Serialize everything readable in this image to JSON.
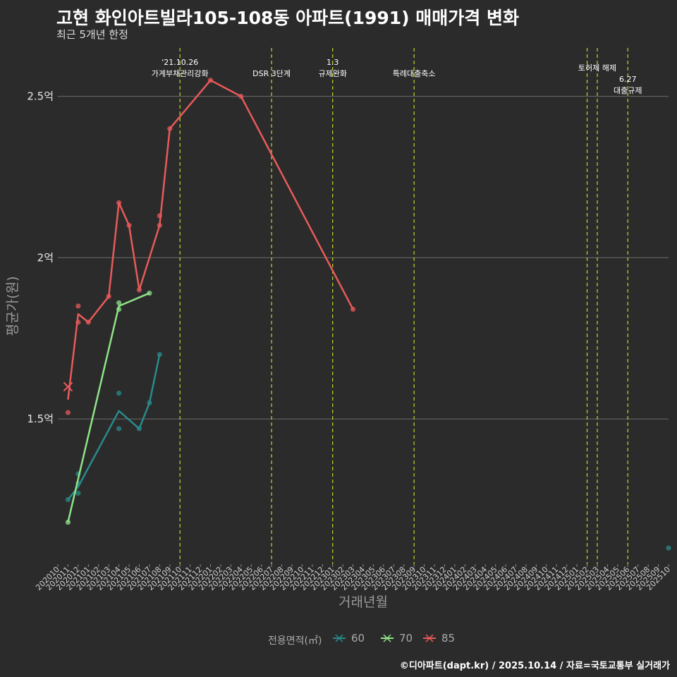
{
  "header": {
    "title": "고현 화인아트빌라105-108동 아파트(1991) 매매가격 변화",
    "subtitle": "최근 5개년 한정"
  },
  "caption": "©디아파트(dapt.kr) / 2025.10.14 / 자료=국토교통부 실거래가",
  "legend": {
    "title": "전용면적(㎡)",
    "items": [
      {
        "label": "60",
        "color": "#2a8a8a"
      },
      {
        "label": "70",
        "color": "#8fe388"
      },
      {
        "label": "85",
        "color": "#e85a5a"
      }
    ]
  },
  "chart_data": {
    "type": "line",
    "title": "고현 화인아트빌라105-108동 아파트(1991) 매매가격 변화",
    "xlabel": "거래년월",
    "ylabel": "평균가(원)",
    "background": "#2b2b2b",
    "categories": [
      "202010",
      "202011",
      "202012",
      "202101",
      "202102",
      "202103",
      "202104",
      "202105",
      "202106",
      "202107",
      "202108",
      "202109",
      "202110",
      "202111",
      "202112",
      "202201",
      "202202",
      "202203",
      "202204",
      "202205",
      "202206",
      "202207",
      "202208",
      "202209",
      "202210",
      "202211",
      "202212",
      "202301",
      "202302",
      "202303",
      "202304",
      "202305",
      "202306",
      "202307",
      "202308",
      "202309",
      "202310",
      "202311",
      "202312",
      "202401",
      "202402",
      "202403",
      "202404",
      "202405",
      "202406",
      "202407",
      "202408",
      "202409",
      "202410",
      "202411",
      "202412",
      "202501",
      "202502",
      "202503",
      "202504",
      "202505",
      "202506",
      "202507",
      "202508",
      "202509",
      "202510"
    ],
    "y_ticks": [
      {
        "value": 1.5,
        "label": "1.5억"
      },
      {
        "value": 2.0,
        "label": "2억"
      },
      {
        "value": 2.5,
        "label": "2.5억"
      }
    ],
    "ylim": [
      1.05,
      2.65
    ],
    "series": [
      {
        "name": "60",
        "color": "#2a8a8a",
        "line": [
          [
            "202011",
            1.25
          ],
          [
            "202012",
            1.29
          ],
          [
            "202104",
            1.525
          ],
          [
            "202106",
            1.47
          ],
          [
            "202107",
            1.55
          ],
          [
            "202108",
            1.7
          ]
        ],
        "points": [
          [
            "202011",
            1.25
          ],
          [
            "202012",
            1.33
          ],
          [
            "202012",
            1.3
          ],
          [
            "202012",
            1.27
          ],
          [
            "202104",
            1.58
          ],
          [
            "202104",
            1.47
          ],
          [
            "202106",
            1.47
          ],
          [
            "202107",
            1.55
          ],
          [
            "202108",
            1.7
          ],
          [
            "202510",
            1.1
          ]
        ]
      },
      {
        "name": "70",
        "color": "#8fe388",
        "line": [
          [
            "202011",
            1.18
          ],
          [
            "202104",
            1.85
          ],
          [
            "202107",
            1.89
          ]
        ],
        "points": [
          [
            "202011",
            1.18
          ],
          [
            "202104",
            1.86
          ],
          [
            "202104",
            1.84
          ],
          [
            "202107",
            1.89
          ]
        ]
      },
      {
        "name": "85",
        "color": "#e85a5a",
        "line": [
          [
            "202011",
            1.56
          ],
          [
            "202012",
            1.825
          ],
          [
            "202101",
            1.8
          ],
          [
            "202103",
            1.88
          ],
          [
            "202104",
            2.17
          ],
          [
            "202105",
            2.1
          ],
          [
            "202106",
            1.9
          ],
          [
            "202108",
            2.1
          ],
          [
            "202109",
            2.4
          ],
          [
            "202201",
            2.55
          ],
          [
            "202204",
            2.5
          ],
          [
            "202303",
            1.84
          ]
        ],
        "points": [
          [
            "202011",
            1.52
          ],
          [
            "202012",
            1.85
          ],
          [
            "202012",
            1.8
          ],
          [
            "202101",
            1.8
          ],
          [
            "202103",
            1.88
          ],
          [
            "202104",
            2.17
          ],
          [
            "202105",
            2.1
          ],
          [
            "202106",
            1.9
          ],
          [
            "202108",
            2.13
          ],
          [
            "202108",
            2.1
          ],
          [
            "202109",
            2.4
          ],
          [
            "202201",
            2.55
          ],
          [
            "202204",
            2.5
          ],
          [
            "202303",
            1.84
          ]
        ],
        "crosses": [
          [
            "202011",
            1.6
          ]
        ]
      }
    ],
    "annotations": [
      {
        "month": "202110",
        "lines": [
          "'21.10.26",
          "가계부채관리강화"
        ],
        "level": 0
      },
      {
        "month": "202207",
        "lines": [
          "DSR 3단계"
        ],
        "level": 2
      },
      {
        "month": "202301",
        "lines": [
          "1.3",
          "규제완화"
        ],
        "level": 0
      },
      {
        "month": "202309",
        "lines": [
          "특례대출축소"
        ],
        "level": 2
      },
      {
        "month": "202502",
        "lines": [],
        "level": 0
      },
      {
        "month": "202503",
        "lines": [
          "토허제 해제"
        ],
        "level": 1
      },
      {
        "month": "202506",
        "lines": [
          "6.27",
          "대출규제"
        ],
        "level": 3
      }
    ]
  }
}
